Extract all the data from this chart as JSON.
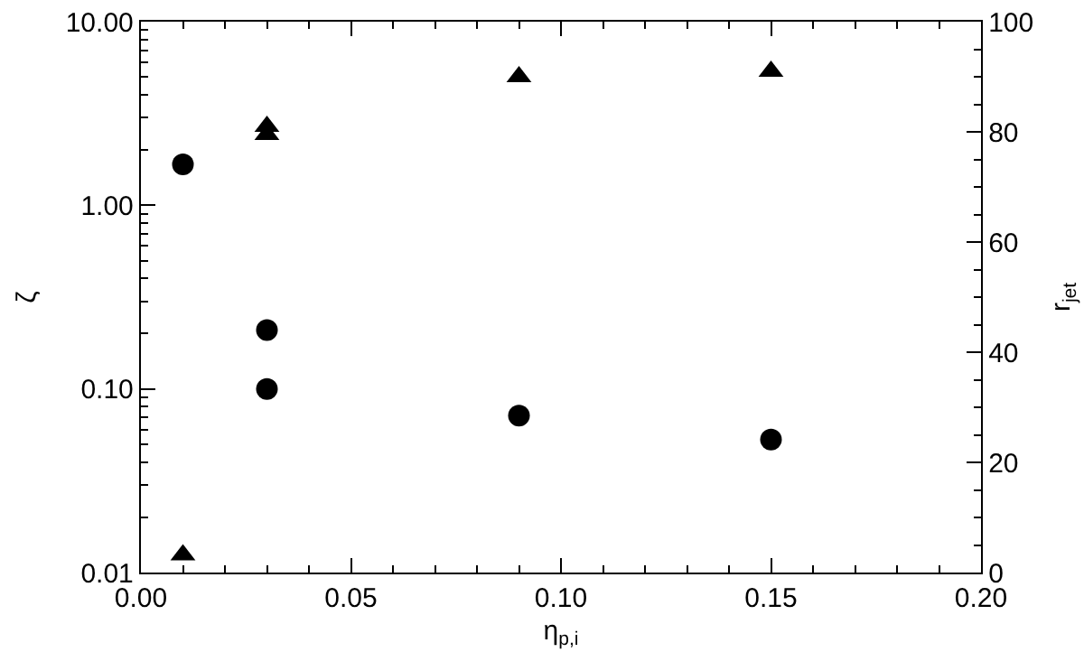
{
  "chart_data": {
    "type": "scatter",
    "xlabel": "η$_{p,i}$",
    "ylabel": "ζ",
    "y2label": "r$_{jet}$",
    "series": [
      {
        "color": "#000000",
        "marker": "circle",
        "x": [
          0.01,
          0.03,
          0.03,
          0.09,
          0.15
        ],
        "values": [
          1.67,
          0.209,
          0.1,
          0.0715,
          0.053
        ]
      },
      {
        "color": "#000000",
        "marker": "triangle",
        "axis": "y2",
        "x": [
          0.01,
          0.03,
          0.03,
          0.09,
          0.15
        ],
        "values": [
          3.2,
          81,
          79.5,
          90,
          91
        ]
      }
    ],
    "log": "y",
    "xlim": [
      0,
      0.2
    ],
    "xticks": [
      {
        "value": 0,
        "label": "0.00"
      },
      0.05,
      {
        "value": 0.1,
        "label": "0.10"
      },
      0.15,
      {
        "value": 0.2,
        "label": "0.20"
      }
    ],
    "ylim": [
      0.01,
      10
    ],
    "yticks": [
      0.01,
      {
        "value": 0.1,
        "label": "0.10"
      },
      {
        "value": 1,
        "label": "1.00"
      },
      {
        "value": 10,
        "label": "10.00"
      }
    ],
    "y2lim": [
      0,
      100
    ],
    "y2ticks": [
      0,
      20,
      40,
      60,
      80,
      100
    ],
    "grid": false
  }
}
